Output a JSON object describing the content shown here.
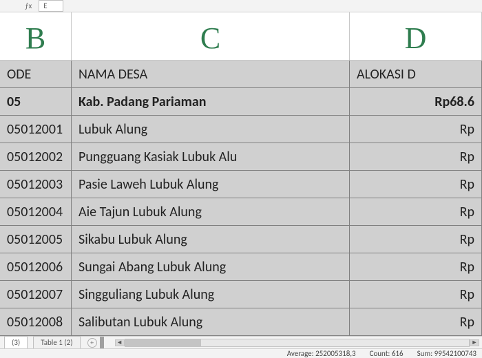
{
  "nameBox": "E",
  "columns": {
    "B": "B",
    "C": "C",
    "D": "D"
  },
  "header": {
    "b": "ODE",
    "c": "NAMA DESA",
    "d": "ALOKASI D"
  },
  "boldRow": {
    "b": "05",
    "c": "Kab.  Padang  Pariaman",
    "d": "Rp68.6"
  },
  "rows": [
    {
      "b": "05012001",
      "c": "Lubuk Alung",
      "d": "Rp"
    },
    {
      "b": "05012002",
      "c": "Pungguang  Kasiak  Lubuk Alu",
      "d": "Rp"
    },
    {
      "b": "05012003",
      "c": "Pasie Laweh Lubuk Alung",
      "d": "Rp"
    },
    {
      "b": "05012004",
      "c": "Aie Tajun Lubuk Alung",
      "d": "Rp"
    },
    {
      "b": "05012005",
      "c": "Sikabu Lubuk Alung",
      "d": "Rp"
    },
    {
      "b": "05012006",
      "c": "Sungai Abang  Lubuk Alung",
      "d": "Rp"
    },
    {
      "b": "05012007",
      "c": "Singguliang  Lubuk Alung",
      "d": "Rp"
    },
    {
      "b": "05012008",
      "c": "Salibutan Lubuk Alung",
      "d": "Rp"
    }
  ],
  "tabs": {
    "active": "(3)",
    "inactive": "Table 1 (2)"
  },
  "status": {
    "averageLabel": "Average:",
    "average": "252005318,3",
    "countLabel": "Count:",
    "count": "616",
    "sumLabel": "Sum:",
    "sum": "99542100743"
  },
  "colors": {
    "colHeaderText": "#2f7d4f",
    "cellSelectedBg": "#d0d0d0",
    "gridBorder": "#808080"
  }
}
